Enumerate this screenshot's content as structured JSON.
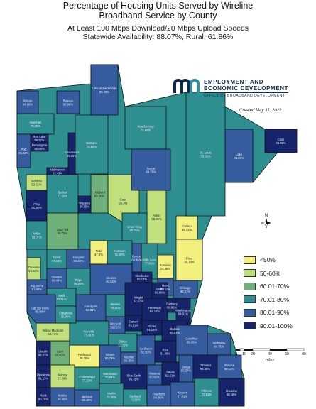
{
  "title": {
    "line1": "Percentage of Housing Units Served by Wireline",
    "line2": "Broadband Service by County",
    "line3": "At Least 100 Mbps Download/20 Mbps Upload Speeds",
    "line4": "Statewide Availability: 88.07%, Rural: 61.86%"
  },
  "logo": {
    "line1": "EMPLOYMENT AND",
    "line2": "ECONOMIC DEVELOPMENT",
    "line3": "OFFICE OF BROADBAND DEVELOPMENT"
  },
  "created": "Created May 31, 2022",
  "legend": [
    {
      "label": "<50%",
      "color": "#f2f07e"
    },
    {
      "label": "50-60%",
      "color": "#bfe07d"
    },
    {
      "label": "60.01-70%",
      "color": "#6fb07a"
    },
    {
      "label": "70.01-80%",
      "color": "#2f8f90"
    },
    {
      "label": "80.01-90%",
      "color": "#355c9e"
    },
    {
      "label": "90.01-100%",
      "color": "#16246b"
    }
  ],
  "scale": {
    "ticks": [
      "0",
      "10",
      "20",
      "40",
      "60",
      "80"
    ],
    "unit": "miles"
  },
  "north_label": "N",
  "counties": [
    {
      "name": "Norman",
      "value": "53.52%",
      "cls": 1
    },
    {
      "name": "Todd",
      "value": "47.6%",
      "cls": 0
    },
    {
      "name": "Cass",
      "value": "56.3%",
      "cls": 1
    },
    {
      "name": "Aitkin",
      "value": "56.26%",
      "cls": 1
    },
    {
      "name": "Carlton",
      "value": "46.71%",
      "cls": 0
    },
    {
      "name": "Pine",
      "value": "35.16%",
      "cls": 0
    },
    {
      "name": "Kanabec",
      "value": "23.46%",
      "cls": 0
    },
    {
      "name": "Traverse",
      "value": "52.60%",
      "cls": 1
    },
    {
      "name": "Redwood",
      "value": "48.35%",
      "cls": 0
    },
    {
      "name": "Murray",
      "value": "57.28%",
      "cls": 1
    },
    {
      "name": "Lincoln",
      "value": "98.07%",
      "cls": 5
    },
    {
      "name": "Lyon",
      "value": "68.82%",
      "cls": 2
    },
    {
      "name": "Yellow Medicine",
      "value": "58.17%",
      "cls": 1
    },
    {
      "name": "Clay",
      "value": "91.86%",
      "cls": 5
    },
    {
      "name": "Cook",
      "value": "94.95%",
      "cls": 5
    },
    {
      "name": "Lake",
      "value": "86.28%",
      "cls": 4
    },
    {
      "name": "St. Louis",
      "value": "78.39%",
      "cls": 3
    },
    {
      "name": "Koochiching",
      "value": "75.68%",
      "cls": 3
    },
    {
      "name": "Itasca",
      "value": "84.76%",
      "cls": 4
    },
    {
      "name": "Mille Lacs",
      "value": "77.83%",
      "cls": 3
    },
    {
      "name": "Hubbard",
      "value": "69.66%",
      "cls": 2
    },
    {
      "name": "Pennington",
      "value": "90.95%",
      "cls": 5
    },
    {
      "name": "Marshall",
      "value": "79.25%",
      "cls": 3
    },
    {
      "name": "Kittson",
      "value": "84.06%",
      "cls": 4
    },
    {
      "name": "Roseau",
      "value": "88.96%",
      "cls": 4
    },
    {
      "name": "Beltrami",
      "value": "70.62%",
      "cls": 3
    },
    {
      "name": "Lake of the Woods",
      "value": "80.56%",
      "cls": 4
    },
    {
      "name": "Polk",
      "value": "81.56%",
      "cls": 4
    },
    {
      "name": "Red Lake",
      "value": "95.37%",
      "cls": 5
    },
    {
      "name": "Clearwater",
      "value": "95.88%",
      "cls": 5
    },
    {
      "name": "Mahnomen",
      "value": "92.43%",
      "cls": 5
    },
    {
      "name": "Becker",
      "value": "77.62%",
      "cls": 3
    },
    {
      "name": "Wadena",
      "value": "90.85%",
      "cls": 5
    },
    {
      "name": "Otter Tail",
      "value": "69.73%",
      "cls": 2
    },
    {
      "name": "Wilkin",
      "value": "70.01%",
      "cls": 3
    },
    {
      "name": "Grant",
      "value": "74.18%",
      "cls": 3
    },
    {
      "name": "Douglas",
      "value": "84.23%",
      "cls": 4
    },
    {
      "name": "Crow Wing",
      "value": "79.45%",
      "cls": 3
    },
    {
      "name": "Morrison",
      "value": "71.80%",
      "cls": 3
    },
    {
      "name": "Benton",
      "value": "88.45%",
      "cls": 4
    },
    {
      "name": "Stearns",
      "value": "84.64%",
      "cls": 4
    },
    {
      "name": "Pope",
      "value": "78.36%",
      "cls": 3
    },
    {
      "name": "Stevens",
      "value": "88.44%",
      "cls": 4
    },
    {
      "name": "Big Stone",
      "value": "81.44%",
      "cls": 4
    },
    {
      "name": "Swift",
      "value": "73.51%",
      "cls": 3
    },
    {
      "name": "Kandiyohi",
      "value": "82.82%",
      "cls": 4
    },
    {
      "name": "Meeker",
      "value": "76.15%",
      "cls": 3
    },
    {
      "name": "Wright",
      "value": "92.07%",
      "cls": 5
    },
    {
      "name": "Sherburne",
      "value": "90.13%",
      "cls": 5
    },
    {
      "name": "Isanti",
      "value": "86.52%",
      "cls": 4
    },
    {
      "name": "Chisago",
      "value": "83.57%",
      "cls": 4
    },
    {
      "name": "Anoka",
      "value": "96.80%",
      "cls": 5
    },
    {
      "name": "Hennepin",
      "value": "99.17%",
      "cls": 5
    },
    {
      "name": "Ramsey",
      "value": "98.92%",
      "cls": 5
    },
    {
      "name": "Washington",
      "value": "94.91%",
      "cls": 5
    },
    {
      "name": "Dakota",
      "value": "95.61%",
      "cls": 5
    },
    {
      "name": "Scott",
      "value": "94.23%",
      "cls": 5
    },
    {
      "name": "Carver",
      "value": "93.91%",
      "cls": 5
    },
    {
      "name": "McLeod",
      "value": "85.02%",
      "cls": 4
    },
    {
      "name": "Renville",
      "value": "71.41%",
      "cls": 3
    },
    {
      "name": "Chippewa",
      "value": "75.66%",
      "cls": 3
    },
    {
      "name": "Lac qui Parle",
      "value": "80.88%",
      "cls": 4
    },
    {
      "name": "Sibley",
      "value": "72.70%",
      "cls": 3
    },
    {
      "name": "Nicollet",
      "value": "86.35%",
      "cls": 4
    },
    {
      "name": "Le Sueur",
      "value": "81.90%",
      "cls": 4
    },
    {
      "name": "Rice",
      "value": "91.08%",
      "cls": 5
    },
    {
      "name": "Goodhue",
      "value": "89.35%",
      "cls": 4
    },
    {
      "name": "Wabasha",
      "value": "84.75%",
      "cls": 4
    },
    {
      "name": "Brown",
      "value": "83.79%",
      "cls": 4
    },
    {
      "name": "Pipestone",
      "value": "91.13%",
      "cls": 5
    },
    {
      "name": "Cottonwood",
      "value": "77.23%",
      "cls": 3
    },
    {
      "name": "Watonwan",
      "value": "70.86%",
      "cls": 3
    },
    {
      "name": "Blue Earth",
      "value": "90.31%",
      "cls": 5
    },
    {
      "name": "Waseca",
      "value": "87.02%",
      "cls": 4
    },
    {
      "name": "Steele",
      "value": "92.51%",
      "cls": 5
    },
    {
      "name": "Dodge",
      "value": "85.57%",
      "cls": 4
    },
    {
      "name": "Olmsted",
      "value": "93.66%",
      "cls": 5
    },
    {
      "name": "Winona",
      "value": "80.14%",
      "cls": 4
    },
    {
      "name": "Rock",
      "value": "90.79%",
      "cls": 5
    },
    {
      "name": "Nobles",
      "value": "84.69%",
      "cls": 4
    },
    {
      "name": "Jackson",
      "value": "86.39%",
      "cls": 4
    },
    {
      "name": "Martin",
      "value": "70.30%",
      "cls": 3
    },
    {
      "name": "Faribault",
      "value": "71.59%",
      "cls": 3
    },
    {
      "name": "Freeborn",
      "value": "84.36%",
      "cls": 4
    },
    {
      "name": "Mower",
      "value": "87.41%",
      "cls": 4
    },
    {
      "name": "Fillmore",
      "value": "73.91%",
      "cls": 3
    },
    {
      "name": "Houston",
      "value": "90.18%",
      "cls": 5
    }
  ]
}
